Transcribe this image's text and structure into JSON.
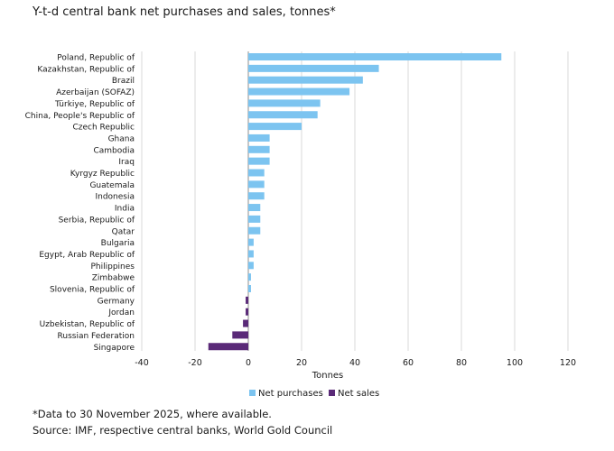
{
  "chart_data": {
    "type": "bar",
    "orientation": "horizontal",
    "title": "Y-t-d central bank net purchases and sales, tonnes*",
    "xlabel": "Tonnes",
    "ylabel": "",
    "xlim": [
      -40,
      120
    ],
    "xticks": [
      "-40",
      "-20",
      "0",
      "20",
      "40",
      "60",
      "80",
      "100",
      "120"
    ],
    "grid": true,
    "legend_position": "bottom-center",
    "series": [
      {
        "name": "Net purchases",
        "color": "#7cc4f0"
      },
      {
        "name": "Net sales",
        "color": "#5a2a78"
      }
    ],
    "categories": [
      "Poland, Republic of",
      "Kazakhstan, Republic of",
      "Brazil",
      "Azerbaijan (SOFAZ)",
      "Türkiye, Republic of",
      "China, People's Republic of",
      "Czech Republic",
      "Ghana",
      "Cambodia",
      "Iraq",
      "Kyrgyz Republic",
      "Guatemala",
      "Indonesia",
      "India",
      "Serbia, Republic of",
      "Qatar",
      "Bulgaria",
      "Egypt, Arab Republic of",
      "Philippines",
      "Zimbabwe",
      "Slovenia, Republic of",
      "Germany",
      "Jordan",
      "Uzbekistan, Republic of",
      "Russian Federation",
      "Singapore"
    ],
    "values": [
      95,
      49,
      43,
      38,
      27,
      26,
      20,
      8,
      8,
      8,
      6,
      6,
      6,
      4.5,
      4.5,
      4.5,
      2,
      2,
      2,
      1,
      1,
      -1,
      -1,
      -2,
      -6,
      -15
    ]
  },
  "footnotes": {
    "note": "*Data to 30 November 2025, where available.",
    "source": "Source: IMF, respective central banks, World Gold Council"
  }
}
